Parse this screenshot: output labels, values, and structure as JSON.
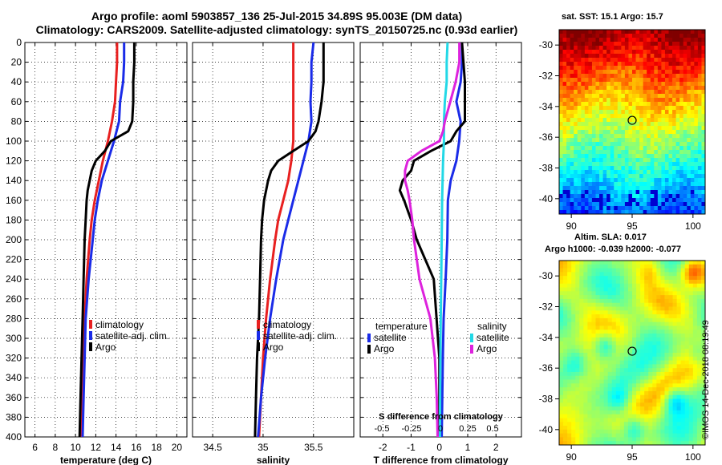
{
  "header": {
    "line1": "Argo profile: aoml 5903857_136 25-Jul-2015 34.89S 95.003E (DM data)",
    "line2": "Climatology: CARS2009. Satellite-adjusted climatology: synTS_20150725.nc (0.93d earlier)"
  },
  "colors": {
    "climatology": "#e82020",
    "satellite": "#1a2be8",
    "argo": "#000000",
    "sal_satellite": "#22d8e6",
    "sal_argo": "#dd22dd"
  },
  "chart_data": [
    {
      "type": "line",
      "title": "",
      "xlabel": "temperature (deg C)",
      "ylabel": "",
      "xlim": [
        5,
        21
      ],
      "ylim": [
        400,
        0
      ],
      "grid": true,
      "x_ticks": [
        "6",
        "8",
        "10",
        "12",
        "14",
        "16",
        "18",
        "20"
      ],
      "y_ticks": [
        "0",
        "20",
        "40",
        "60",
        "80",
        "100",
        "120",
        "140",
        "160",
        "180",
        "200",
        "220",
        "240",
        "260",
        "280",
        "300",
        "320",
        "340",
        "360",
        "380",
        "400"
      ],
      "legend": [
        "climatology",
        "satellite-adj. clim.",
        "Argo"
      ],
      "legend_position": "lower-right",
      "series": [
        {
          "name": "climatology",
          "depth": [
            0,
            20,
            40,
            60,
            80,
            100,
            120,
            140,
            160,
            180,
            200,
            240,
            280,
            320,
            360,
            400
          ],
          "values": [
            14.1,
            14.1,
            14.0,
            13.9,
            13.6,
            13.2,
            12.7,
            12.3,
            11.9,
            11.6,
            11.4,
            11.1,
            10.9,
            10.8,
            10.7,
            10.6
          ]
        },
        {
          "name": "satellite-adj. clim.",
          "depth": [
            0,
            20,
            40,
            60,
            80,
            100,
            120,
            140,
            160,
            180,
            200,
            240,
            280,
            320,
            360,
            400
          ],
          "values": [
            14.8,
            14.8,
            14.7,
            14.4,
            14.3,
            13.8,
            13.2,
            12.6,
            12.2,
            11.9,
            11.7,
            11.3,
            11.0,
            10.9,
            10.8,
            10.7
          ]
        },
        {
          "name": "Argo",
          "depth": [
            0,
            20,
            40,
            60,
            80,
            90,
            100,
            110,
            120,
            130,
            140,
            150,
            160,
            180,
            200,
            240,
            280,
            320,
            360,
            400
          ],
          "values": [
            15.8,
            15.8,
            15.7,
            15.7,
            15.6,
            15.2,
            13.5,
            12.9,
            12.0,
            11.6,
            11.4,
            11.2,
            11.1,
            11.0,
            10.9,
            10.8,
            10.7,
            10.6,
            10.5,
            10.4
          ]
        }
      ]
    },
    {
      "type": "line",
      "title": "",
      "xlabel": "salinity",
      "ylabel": "",
      "xlim": [
        34.3,
        35.9
      ],
      "ylim": [
        400,
        0
      ],
      "grid": true,
      "x_ticks": [
        "34.5",
        "35",
        "35.5"
      ],
      "y_ticks": [],
      "legend": [
        "climatology",
        "satellite-adj. clim.",
        "Argo"
      ],
      "legend_position": "lower-right",
      "series": [
        {
          "name": "climatology",
          "depth": [
            0,
            20,
            40,
            60,
            80,
            100,
            120,
            140,
            160,
            180,
            200,
            240,
            280,
            320,
            360,
            400
          ],
          "values": [
            35.3,
            35.3,
            35.3,
            35.3,
            35.3,
            35.3,
            35.28,
            35.25,
            35.2,
            35.15,
            35.12,
            35.07,
            35.03,
            35.0,
            34.98,
            34.96
          ]
        },
        {
          "name": "satellite-adj. clim.",
          "depth": [
            0,
            20,
            40,
            60,
            80,
            100,
            120,
            140,
            160,
            180,
            200,
            240,
            280,
            320,
            360,
            400
          ],
          "values": [
            35.5,
            35.48,
            35.48,
            35.47,
            35.48,
            35.45,
            35.4,
            35.35,
            35.3,
            35.25,
            35.2,
            35.13,
            35.07,
            35.02,
            34.98,
            34.95
          ]
        },
        {
          "name": "Argo",
          "depth": [
            0,
            20,
            40,
            60,
            80,
            90,
            100,
            110,
            120,
            130,
            140,
            150,
            160,
            180,
            200,
            240,
            280,
            320,
            360,
            400
          ],
          "values": [
            35.6,
            35.6,
            35.6,
            35.58,
            35.55,
            35.52,
            35.45,
            35.3,
            35.15,
            35.08,
            35.05,
            35.03,
            35.01,
            34.99,
            34.98,
            34.97,
            34.96,
            34.94,
            34.93,
            34.92
          ]
        }
      ]
    },
    {
      "type": "line",
      "title": "",
      "xlabel": "T difference from climatology",
      "ylabel": "",
      "xlim": [
        -2.8,
        2.9
      ],
      "ylim": [
        400,
        0
      ],
      "grid": true,
      "x_ticks": [
        "-2",
        "-1",
        "0",
        "1",
        "2"
      ],
      "y_ticks": [],
      "secondary_xlabel": "S difference from climatology",
      "secondary_x_ticks": [
        "-0.5",
        "-0.25",
        "0",
        "0.25",
        "0.5"
      ],
      "legend_temperature_title": "temperature",
      "legend_salinity_title": "salinity",
      "legend": [
        "satellite",
        "Argo",
        "satellite",
        "Argo"
      ],
      "legend_position": "lower-center",
      "series": [
        {
          "name": "temperature satellite",
          "depth": [
            0,
            20,
            40,
            60,
            80,
            100,
            120,
            140,
            160,
            200,
            240,
            280,
            320,
            360,
            400
          ],
          "values": [
            0.8,
            0.8,
            0.75,
            0.6,
            0.75,
            0.7,
            0.6,
            0.4,
            0.3,
            0.28,
            0.22,
            0.15,
            0.12,
            0.1,
            0.08
          ]
        },
        {
          "name": "temperature Argo",
          "depth": [
            0,
            20,
            40,
            60,
            80,
            90,
            100,
            110,
            120,
            130,
            140,
            150,
            160,
            180,
            200,
            220,
            240,
            280,
            320,
            360,
            400
          ],
          "values": [
            0.8,
            0.85,
            0.9,
            0.9,
            0.9,
            0.6,
            0.4,
            -0.3,
            -0.9,
            -1.0,
            -1.3,
            -1.4,
            -1.25,
            -1.0,
            -0.8,
            -0.5,
            -0.2,
            -0.1,
            0.0,
            0.0,
            0.0
          ]
        },
        {
          "name": "salinity satellite",
          "depth": [
            0,
            20,
            40,
            60,
            80,
            100,
            120,
            140,
            160,
            200,
            240,
            280,
            320,
            360,
            400
          ],
          "values": [
            0.09,
            0.08,
            0.08,
            0.06,
            0.05,
            0.05,
            0.04,
            0.035,
            0.03,
            0.025,
            0.02,
            0.015,
            0.01,
            0.008,
            0.006
          ]
        },
        {
          "name": "salinity Argo",
          "depth": [
            0,
            20,
            40,
            60,
            80,
            90,
            100,
            110,
            120,
            130,
            140,
            150,
            160,
            180,
            200,
            240,
            280,
            320,
            360,
            400
          ],
          "values": [
            0.22,
            0.22,
            0.18,
            0.12,
            0.06,
            0.04,
            0.0,
            -0.2,
            -0.35,
            -0.38,
            -0.38,
            -0.35,
            -0.33,
            -0.3,
            -0.28,
            -0.22,
            -0.1,
            -0.05,
            -0.03,
            -0.02
          ]
        }
      ]
    },
    {
      "type": "heatmap",
      "title": "sat. SST: 15.1 Argo: 15.7",
      "xlim": [
        89,
        101
      ],
      "ylim": [
        -41,
        -29
      ],
      "x_ticks": [
        "90",
        "95",
        "100"
      ],
      "y_ticks": [
        "-30",
        "-32",
        "-34",
        "-36",
        "-38",
        "-40"
      ],
      "marker": {
        "lon": 95,
        "lat": -34.9
      }
    },
    {
      "type": "heatmap",
      "title": "Altim. SLA: 0.017",
      "subtitle": "Argo h1000: -0.039 h2000: -0.077",
      "xlim": [
        89,
        101
      ],
      "ylim": [
        -41,
        -29
      ],
      "x_ticks": [
        "90",
        "95",
        "100"
      ],
      "y_ticks": [
        "-30",
        "-32",
        "-34",
        "-36",
        "-38",
        "-40"
      ],
      "marker": {
        "lon": 95,
        "lat": -34.9
      }
    }
  ],
  "stamp": "©IMOS 14-Dec-2018 08:19:49"
}
